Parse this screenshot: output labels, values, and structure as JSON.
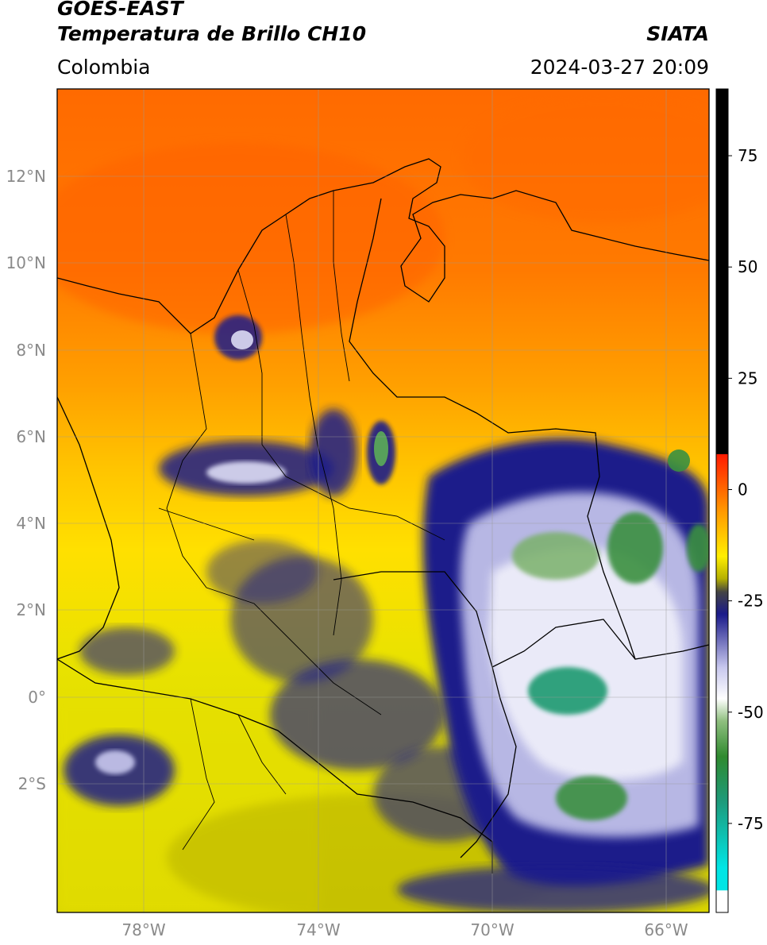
{
  "header": {
    "satellite": "GOES-EAST",
    "product": "Temperatura de Brillo CH10",
    "agency": "SIATA",
    "region": "Colombia",
    "datetime": "2024-03-27 20:09"
  },
  "map": {
    "lon_range": [
      -80,
      -65
    ],
    "lat_range": [
      -5,
      14
    ],
    "lat_ticks": [
      {
        "value": 12,
        "label": "12°N"
      },
      {
        "value": 10,
        "label": "10°N"
      },
      {
        "value": 8,
        "label": "8°N"
      },
      {
        "value": 6,
        "label": "6°N"
      },
      {
        "value": 4,
        "label": "4°N"
      },
      {
        "value": 2,
        "label": "2°N"
      },
      {
        "value": 0,
        "label": "0°"
      },
      {
        "value": -2,
        "label": "2°S"
      }
    ],
    "lon_ticks": [
      {
        "value": -78,
        "label": "78°W"
      },
      {
        "value": -74,
        "label": "74°W"
      },
      {
        "value": -70,
        "label": "70°W"
      },
      {
        "value": -66,
        "label": "66°W"
      }
    ],
    "grid": true
  },
  "colorbar": {
    "range": [
      -95,
      90
    ],
    "ticks": [
      {
        "value": 75,
        "label": "75"
      },
      {
        "value": 50,
        "label": "50"
      },
      {
        "value": 25,
        "label": "25"
      },
      {
        "value": 0,
        "label": "0"
      },
      {
        "value": -25,
        "label": "-25"
      },
      {
        "value": -50,
        "label": "-50"
      },
      {
        "value": -75,
        "label": "-75"
      }
    ],
    "stops": [
      {
        "value": 90,
        "color": "#000000"
      },
      {
        "value": 8,
        "color": "#000000"
      },
      {
        "value": 7.9,
        "color": "#ff1a00"
      },
      {
        "value": -5,
        "color": "#ff9a00"
      },
      {
        "value": -15,
        "color": "#ffee00"
      },
      {
        "value": -20,
        "color": "#b5b000"
      },
      {
        "value": -23,
        "color": "#444444"
      },
      {
        "value": -28,
        "color": "#1a1a8a"
      },
      {
        "value": -40,
        "color": "#c8c8ee"
      },
      {
        "value": -47,
        "color": "#ffffff"
      },
      {
        "value": -52,
        "color": "#8fbf7f"
      },
      {
        "value": -60,
        "color": "#2f8a2f"
      },
      {
        "value": -70,
        "color": "#1e9a7a"
      },
      {
        "value": -85,
        "color": "#00e5e5"
      },
      {
        "value": -90,
        "color": "#00e5e5"
      },
      {
        "value": -90.1,
        "color": "#ffffff"
      },
      {
        "value": -95,
        "color": "#ffffff"
      }
    ]
  }
}
